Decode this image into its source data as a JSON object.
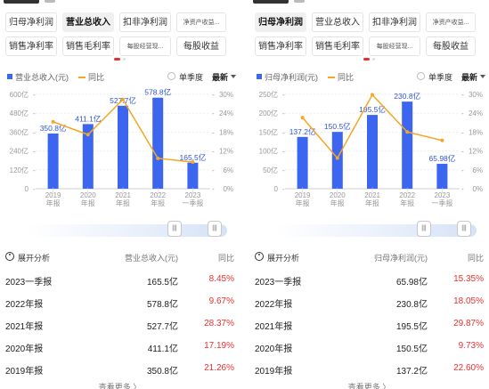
{
  "colors": {
    "bar": "#3c66f0",
    "line": "#f5a623",
    "up": "#e93030",
    "slider_end": "#d4e2f7"
  },
  "panels": [
    {
      "tabs": [
        {
          "label": "归母净利润",
          "active": false,
          "small": false
        },
        {
          "label": "营业总收入",
          "active": true,
          "small": false
        },
        {
          "label": "扣非净利润",
          "active": false,
          "small": false
        },
        {
          "label": "净资产收益...",
          "active": false,
          "small": true
        },
        {
          "label": "销售净利率",
          "active": false,
          "small": false
        },
        {
          "label": "销售毛利率",
          "active": false,
          "small": false
        },
        {
          "label": "每股经营现...",
          "active": false,
          "small": true
        },
        {
          "label": "每股收益",
          "active": false,
          "small": false
        }
      ],
      "legend": {
        "bar_label": "营业总收入(元)",
        "line_label": "同比",
        "single_quarter": "单季度",
        "latest": "最新"
      },
      "table": {
        "col1": "展开分析",
        "col2": "营业总收入(元)",
        "col3": "同比",
        "rows": [
          {
            "period": "2023一季报",
            "value": "165.5亿",
            "yoy": "8.45%"
          },
          {
            "period": "2022年报",
            "value": "578.8亿",
            "yoy": "9.67%"
          },
          {
            "period": "2021年报",
            "value": "527.7亿",
            "yoy": "28.37%"
          },
          {
            "period": "2020年报",
            "value": "411.1亿",
            "yoy": "17.19%"
          },
          {
            "period": "2019年报",
            "value": "350.8亿",
            "yoy": "21.26%"
          }
        ]
      },
      "more": "查看更多 〉",
      "slider": {
        "handle_left": "|||",
        "handle_right": "|||"
      },
      "chart_data": {
        "type": "bar",
        "categories": [
          "2019\n年报",
          "2020\n年报",
          "2021\n年报",
          "2022\n年报",
          "2023\n一季报"
        ],
        "series": [
          {
            "name": "营业总收入(元)",
            "values": [
              350.8,
              411.1,
              527.7,
              578.8,
              165.5
            ],
            "labels": [
              "350.8亿",
              "411.1亿",
              "527.7亿",
              "578.8亿",
              "165.5亿"
            ],
            "axis": "left"
          },
          {
            "name": "同比",
            "type": "line",
            "values": [
              21.26,
              17.19,
              28.37,
              9.67,
              8.45
            ],
            "axis": "right"
          }
        ],
        "ylim": [
          0,
          600
        ],
        "y_ticks": [
          0,
          120,
          240,
          360,
          480,
          600
        ],
        "y_tick_labels": [
          "0",
          "120亿",
          "240亿",
          "360亿",
          "480亿",
          "600亿"
        ],
        "y2lim": [
          0,
          30
        ],
        "y2_ticks": [
          0,
          6,
          12,
          18,
          24,
          30
        ],
        "y2_tick_labels": [
          "0%",
          "6%",
          "12%",
          "18%",
          "24%",
          "30%"
        ],
        "grid": true,
        "legend": "top-left"
      }
    },
    {
      "tabs": [
        {
          "label": "归母净利润",
          "active": true,
          "small": false
        },
        {
          "label": "营业总收入",
          "active": false,
          "small": false
        },
        {
          "label": "扣非净利润",
          "active": false,
          "small": false
        },
        {
          "label": "净资产收益...",
          "active": false,
          "small": true
        },
        {
          "label": "销售净利率",
          "active": false,
          "small": false
        },
        {
          "label": "销售毛利率",
          "active": false,
          "small": false
        },
        {
          "label": "每股经营现...",
          "active": false,
          "small": true
        },
        {
          "label": "每股收益",
          "active": false,
          "small": false
        }
      ],
      "legend": {
        "bar_label": "归母净利润(元)",
        "line_label": "同比",
        "single_quarter": "单季度",
        "latest": "最新"
      },
      "table": {
        "col1": "展开分析",
        "col2": "归母净利润(元)",
        "col3": "同比",
        "rows": [
          {
            "period": "2023一季报",
            "value": "65.98亿",
            "yoy": "15.35%"
          },
          {
            "period": "2022年报",
            "value": "230.8亿",
            "yoy": "18.05%"
          },
          {
            "period": "2021年报",
            "value": "195.5亿",
            "yoy": "29.87%"
          },
          {
            "period": "2020年报",
            "value": "150.5亿",
            "yoy": "9.73%"
          },
          {
            "period": "2019年报",
            "value": "137.2亿",
            "yoy": "22.60%"
          }
        ]
      },
      "more": "查看更多 〉",
      "slider": {
        "handle_left": "|||",
        "handle_right": "|||"
      },
      "chart_data": {
        "type": "bar",
        "categories": [
          "2019\n年报",
          "2020\n年报",
          "2021\n年报",
          "2022\n年报",
          "2023\n一季报"
        ],
        "series": [
          {
            "name": "归母净利润(元)",
            "values": [
              137.2,
              150.5,
              195.5,
              230.8,
              65.98
            ],
            "labels": [
              "137.2亿",
              "150.5亿",
              "195.5亿",
              "230.8亿",
              "65.98亿"
            ],
            "axis": "left"
          },
          {
            "name": "同比",
            "type": "line",
            "values": [
              22.6,
              9.73,
              29.87,
              18.05,
              15.35
            ],
            "axis": "right"
          }
        ],
        "ylim": [
          0,
          250
        ],
        "y_ticks": [
          0,
          50,
          100,
          150,
          200,
          250
        ],
        "y_tick_labels": [
          "0",
          "50亿",
          "100亿",
          "150亿",
          "200亿",
          "250亿"
        ],
        "y2lim": [
          0,
          30
        ],
        "y2_ticks": [
          0,
          6,
          12,
          18,
          24,
          30
        ],
        "y2_tick_labels": [
          "0%",
          "6%",
          "12%",
          "18%",
          "24%",
          "30%"
        ],
        "grid": true,
        "legend": "top-left"
      }
    }
  ]
}
